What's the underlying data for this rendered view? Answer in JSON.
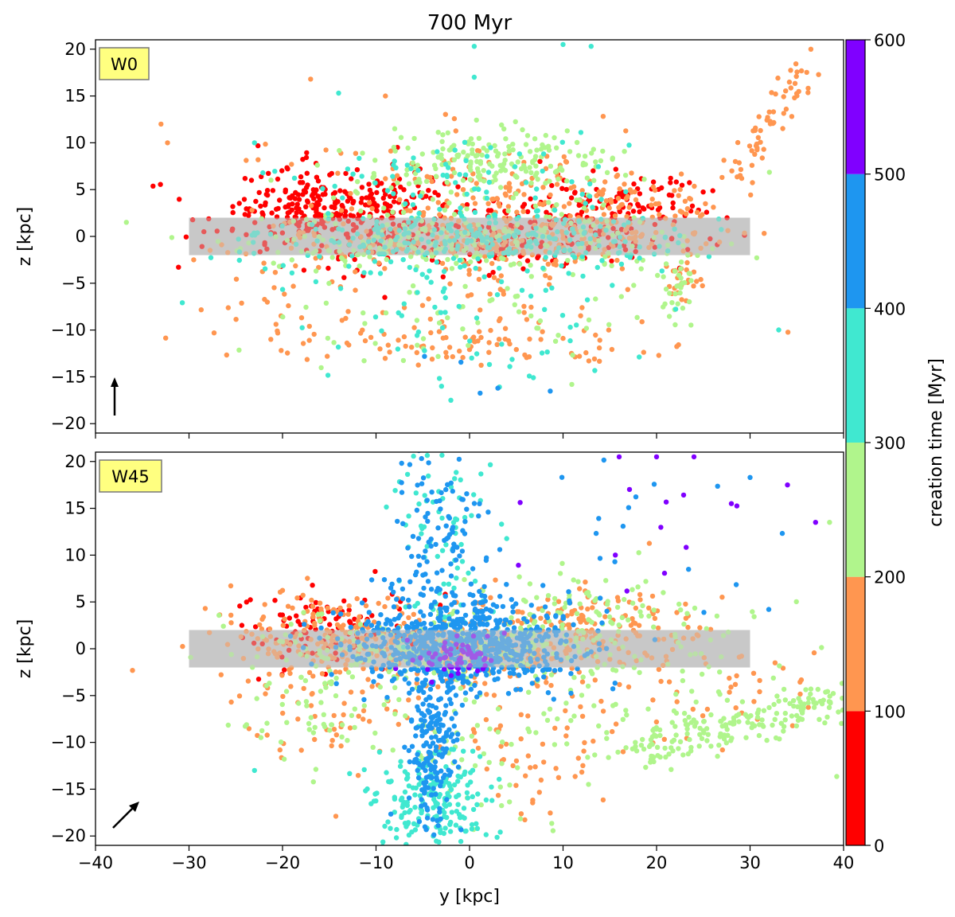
{
  "chart_data": [
    {
      "type": "scatter",
      "title": "700 Myr",
      "panel_label": "W0",
      "xlabel": "",
      "ylabel": "z [kpc]",
      "xlim": [
        -40,
        40
      ],
      "ylim": [
        -21,
        21
      ],
      "xticks": [
        -40,
        -30,
        -20,
        -10,
        0,
        10,
        20,
        30,
        40
      ],
      "yticks": [
        -20,
        -15,
        -10,
        -5,
        0,
        5,
        10,
        15,
        20
      ],
      "shaded_band": {
        "x": [
          -30,
          30
        ],
        "y": [
          -2,
          2
        ],
        "color": "#c8c8c8"
      },
      "wind_direction_deg": 90,
      "clusters": [
        {
          "cx": 0,
          "cy": -0.5,
          "sx": 11,
          "sy": 1.6,
          "n": 900,
          "t": [
            0,
            400
          ]
        },
        {
          "cx": -15,
          "cy": 3,
          "sx": 6,
          "sy": 2,
          "n": 300,
          "t": [
            0,
            100
          ]
        },
        {
          "cx": 15,
          "cy": 3,
          "sx": 6,
          "sy": 2,
          "n": 260,
          "t": [
            0,
            200
          ]
        },
        {
          "cx": 0,
          "cy": 6,
          "sx": 9,
          "sy": 2.5,
          "n": 260,
          "t": [
            100,
            400
          ]
        },
        {
          "cx": 3,
          "cy": 8.5,
          "sx": 6,
          "sy": 1.5,
          "n": 120,
          "t": [
            200,
            300
          ]
        },
        {
          "cx": 0,
          "cy": -8,
          "sx": 10,
          "sy": 3.5,
          "n": 180,
          "t": [
            100,
            400
          ]
        },
        {
          "cx": 0,
          "cy": -11.5,
          "sx": 9,
          "sy": 1,
          "n": 70,
          "t": [
            100,
            200
          ]
        },
        {
          "cx": 22.5,
          "cy": -5,
          "sx": 1,
          "sy": 1.5,
          "n": 50,
          "t": [
            100,
            300
          ]
        },
        {
          "cx": -20,
          "cy": -8,
          "sx": 4,
          "sy": 3,
          "n": 25,
          "t": [
            100,
            200
          ]
        },
        {
          "cx": 2,
          "cy": -15,
          "sx": 3,
          "sy": 1.5,
          "n": 12,
          "t": [
            300,
            500
          ]
        }
      ],
      "streams": [
        {
          "from": [
            28,
            6
          ],
          "to": [
            36,
            17.5
          ],
          "spread": 0.8,
          "n": 60,
          "t": [
            100,
            200
          ]
        }
      ],
      "scatter_points": [
        {
          "y": -33,
          "z": 12,
          "t": 150
        },
        {
          "y": -32.3,
          "z": 10,
          "t": 150
        },
        {
          "y": -17,
          "z": 16.8,
          "t": 150
        },
        {
          "y": -14,
          "z": 15.3,
          "t": 350
        },
        {
          "y": -9,
          "z": 15,
          "t": 150
        },
        {
          "y": 0.5,
          "z": 20.3,
          "t": 350
        },
        {
          "y": 0.5,
          "z": 17,
          "t": 350
        },
        {
          "y": 10,
          "z": 20.5,
          "t": 350
        },
        {
          "y": 13,
          "z": 20.3,
          "t": 350
        },
        {
          "y": 36.5,
          "z": 20,
          "t": 150
        },
        {
          "y": -23,
          "z": 10,
          "t": 350
        },
        {
          "y": -29.5,
          "z": -2.5,
          "t": 150
        },
        {
          "y": -2,
          "z": -17.5,
          "t": 350
        },
        {
          "y": -3,
          "z": -16,
          "t": 350
        },
        {
          "y": 27,
          "z": 6.3,
          "t": 150
        },
        {
          "y": -8,
          "z": 11.5,
          "t": 250
        }
      ]
    },
    {
      "type": "scatter",
      "panel_label": "W45",
      "xlabel": "y [kpc]",
      "ylabel": "z [kpc]",
      "xlim": [
        -40,
        40
      ],
      "ylim": [
        -21,
        21
      ],
      "xticks": [
        -40,
        -30,
        -20,
        -10,
        0,
        10,
        20,
        30,
        40
      ],
      "yticks": [
        -20,
        -15,
        -10,
        -5,
        0,
        5,
        10,
        15,
        20
      ],
      "shaded_band": {
        "x": [
          -30,
          30
        ],
        "y": [
          -2,
          2
        ],
        "color": "#c8c8c8"
      },
      "wind_direction_deg": 45,
      "clusters": [
        {
          "cx": -1,
          "cy": 0.5,
          "sx": 6,
          "sy": 2.3,
          "n": 700,
          "t": [
            400,
            500
          ]
        },
        {
          "cx": 0,
          "cy": 0,
          "sx": 12,
          "sy": 2,
          "n": 500,
          "t": [
            100,
            300
          ]
        },
        {
          "cx": -15,
          "cy": 2,
          "sx": 5,
          "sy": 2.2,
          "n": 220,
          "t": [
            0,
            200
          ]
        },
        {
          "cx": 12,
          "cy": 3,
          "sx": 6,
          "sy": 2.5,
          "n": 220,
          "t": [
            100,
            300
          ]
        },
        {
          "cx": -4,
          "cy": -10,
          "sx": 1.3,
          "sy": 4.5,
          "n": 200,
          "t": [
            400,
            500
          ]
        },
        {
          "cx": -4,
          "cy": -16,
          "sx": 3,
          "sy": 3,
          "n": 200,
          "t": [
            300,
            400
          ]
        },
        {
          "cx": -3,
          "cy": 12,
          "sx": 3,
          "sy": 5,
          "n": 180,
          "t": [
            300,
            500
          ]
        },
        {
          "cx": -15,
          "cy": -6,
          "sx": 5,
          "sy": 3,
          "n": 120,
          "t": [
            100,
            300
          ]
        },
        {
          "cx": 5,
          "cy": -10,
          "sx": 8,
          "sy": 4,
          "n": 160,
          "t": [
            100,
            300
          ]
        },
        {
          "cx": -1,
          "cy": -1,
          "sx": 2.5,
          "sy": 1.2,
          "n": 60,
          "t": [
            500,
            600
          ]
        },
        {
          "cx": 16,
          "cy": 13,
          "sx": 9,
          "sy": 5,
          "n": 30,
          "t": [
            400,
            600
          ]
        }
      ],
      "streams": [
        {
          "from": [
            18,
            -11
          ],
          "to": [
            40,
            -5
          ],
          "spread": 1.2,
          "n": 180,
          "t": [
            200,
            300
          ]
        },
        {
          "from": [
            16,
            -8
          ],
          "to": [
            36,
            -2
          ],
          "spread": 2.5,
          "n": 60,
          "t": [
            100,
            300
          ]
        }
      ],
      "scatter_points": [
        {
          "y": 30,
          "z": 18.3,
          "t": 450
        },
        {
          "y": 34,
          "z": 17.5,
          "t": 550
        },
        {
          "y": 37,
          "z": 13.5,
          "t": 550
        },
        {
          "y": 38.5,
          "z": 13.5,
          "t": 250
        },
        {
          "y": 24,
          "z": 20.5,
          "t": 550
        },
        {
          "y": 20,
          "z": 20.5,
          "t": 550
        },
        {
          "y": -23,
          "z": -13,
          "t": 350
        },
        {
          "y": 16,
          "z": 20.5,
          "t": 550
        },
        {
          "y": 28,
          "z": 15.5,
          "t": 550
        },
        {
          "y": 32,
          "z": 4.2,
          "t": 450
        }
      ]
    }
  ],
  "colorbar": {
    "label": "creation time [Myr]",
    "ticks": [
      0,
      100,
      200,
      300,
      400,
      500,
      600
    ],
    "bins": [
      {
        "from": 0,
        "to": 100,
        "color": "#ff0000"
      },
      {
        "from": 100,
        "to": 200,
        "color": "#ff9650"
      },
      {
        "from": 200,
        "to": 300,
        "color": "#b0f58c"
      },
      {
        "from": 300,
        "to": 400,
        "color": "#40e8d0"
      },
      {
        "from": 400,
        "to": 500,
        "color": "#1e96f0"
      },
      {
        "from": 500,
        "to": 600,
        "color": "#8000ff"
      }
    ]
  }
}
